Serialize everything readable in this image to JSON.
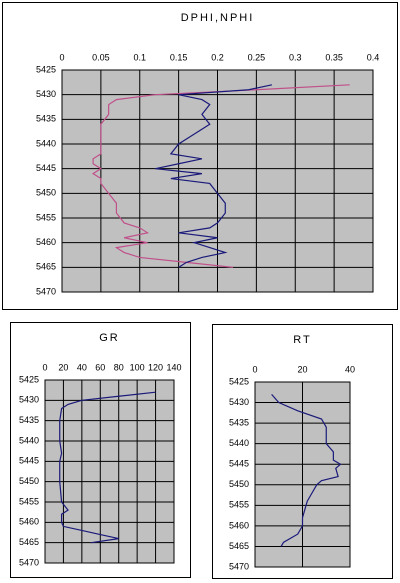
{
  "chart_data": [
    {
      "type": "line",
      "title": "DPHI,NPHI",
      "grid": true,
      "y": [
        5428,
        5429,
        5430,
        5431,
        5432,
        5434,
        5436,
        5438,
        5440,
        5442,
        5443,
        5444,
        5445,
        5446,
        5447,
        5448,
        5450,
        5452,
        5454,
        5456,
        5457,
        5458,
        5459,
        5460,
        5461,
        5462,
        5463,
        5464,
        5465
      ],
      "ylim": [
        5425,
        5470
      ],
      "yticks": [
        5425,
        5430,
        5435,
        5440,
        5445,
        5450,
        5455,
        5460,
        5465,
        5470
      ],
      "xlim": [
        0,
        0.4
      ],
      "xticks": [
        0,
        0.05,
        0.1,
        0.15,
        0.2,
        0.25,
        0.3,
        0.35,
        0.4
      ],
      "series": [
        {
          "color": "#c0508a",
          "values": [
            0.37,
            0.25,
            0.12,
            0.07,
            0.06,
            0.06,
            0.05,
            0.05,
            0.05,
            0.05,
            0.04,
            0.04,
            0.05,
            0.04,
            0.05,
            0.05,
            0.06,
            0.07,
            0.07,
            0.08,
            0.1,
            0.11,
            0.08,
            0.11,
            0.07,
            0.08,
            0.1,
            0.16,
            0.22
          ]
        },
        {
          "color": "#1a1a7a",
          "values": [
            0.27,
            0.24,
            0.15,
            0.18,
            0.19,
            0.18,
            0.19,
            0.17,
            0.15,
            0.14,
            0.18,
            0.15,
            0.12,
            0.18,
            0.14,
            0.19,
            0.2,
            0.21,
            0.21,
            0.2,
            0.19,
            0.15,
            0.2,
            0.17,
            0.19,
            0.21,
            0.18,
            0.16,
            0.15
          ]
        }
      ]
    },
    {
      "type": "line",
      "title": "GR",
      "grid": true,
      "y": [
        5428,
        5429,
        5430,
        5431,
        5432,
        5435,
        5440,
        5443,
        5445,
        5450,
        5455,
        5457,
        5458,
        5460,
        5461,
        5462,
        5463,
        5464,
        5465
      ],
      "ylim": [
        5425,
        5470
      ],
      "yticks": [
        5425,
        5430,
        5435,
        5440,
        5445,
        5450,
        5455,
        5460,
        5465,
        5470
      ],
      "xlim": [
        0,
        140
      ],
      "xticks": [
        0,
        20,
        40,
        60,
        80,
        100,
        120,
        140
      ],
      "series": [
        {
          "color": "#1a1a7a",
          "values": [
            120,
            80,
            40,
            25,
            18,
            16,
            16,
            18,
            16,
            16,
            18,
            25,
            18,
            18,
            20,
            40,
            60,
            80,
            50
          ]
        }
      ]
    },
    {
      "type": "line",
      "title": "RT",
      "grid": true,
      "y": [
        5428,
        5430,
        5432,
        5434,
        5436,
        5440,
        5442,
        5444,
        5445,
        5446,
        5448,
        5449,
        5450,
        5452,
        5454,
        5456,
        5458,
        5460,
        5462,
        5464,
        5465
      ],
      "ylim": [
        5425,
        5470
      ],
      "yticks": [
        5425,
        5430,
        5435,
        5440,
        5445,
        5450,
        5455,
        5460,
        5465,
        5470
      ],
      "xlim": [
        0,
        40
      ],
      "xticks": [
        0,
        20,
        40
      ],
      "series": [
        {
          "color": "#1a1a7a",
          "values": [
            7,
            10,
            18,
            28,
            30,
            30,
            33,
            33,
            36,
            34,
            35,
            28,
            26,
            24,
            22,
            21,
            20,
            20,
            18,
            12,
            11
          ]
        }
      ]
    }
  ]
}
